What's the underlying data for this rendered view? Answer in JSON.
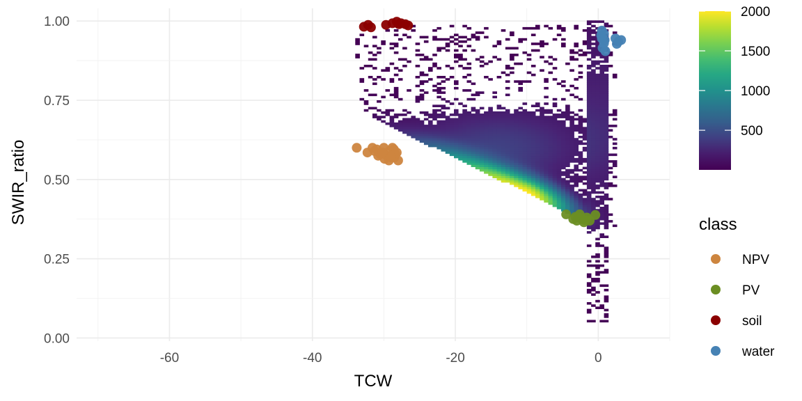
{
  "chart_data": {
    "type": "heatmap",
    "title": "",
    "xlabel": "TCW",
    "ylabel": "SWIR_ratio",
    "xlim": [
      -73,
      10
    ],
    "ylim": [
      -0.01,
      1.04
    ],
    "x_ticks": [
      -60,
      -40,
      -20,
      0
    ],
    "x_tick_labels": [
      "-60",
      "-40",
      "-20",
      "0"
    ],
    "y_ticks": [
      0.0,
      0.25,
      0.5,
      0.75,
      1.0
    ],
    "y_tick_labels": [
      "0.00",
      "0.25",
      "0.50",
      "0.75",
      "1.00"
    ],
    "grid": true,
    "background": "#ffffff",
    "density": {
      "description_of_source": "2D binned count of pixels (TCW vs SWIR_ratio)",
      "peak": {
        "x": -10,
        "y": 0.455
      },
      "colorbar": {
        "ticks": [
          500,
          1000,
          1500,
          2000
        ],
        "tick_labels": [
          "500",
          "1000",
          "1500",
          "2000"
        ],
        "range": [
          1,
          2000
        ],
        "colors": [
          "#440154",
          "#3b528b",
          "#21908c",
          "#5dc863",
          "#fde725"
        ]
      }
    },
    "legend": {
      "title": "class",
      "position": "right",
      "entries": [
        {
          "label": "NPV",
          "color": "#CD853F"
        },
        {
          "label": "PV",
          "color": "#6B8E23"
        },
        {
          "label": "soil",
          "color": "#8B0000"
        },
        {
          "label": "water",
          "color": "#4682B4"
        }
      ]
    },
    "series": [
      {
        "name": "NPV",
        "color": "#CD853F",
        "points": [
          [
            -33.8,
            0.6
          ],
          [
            -32.3,
            0.585
          ],
          [
            -31.6,
            0.6
          ],
          [
            -31.0,
            0.595
          ],
          [
            -30.5,
            0.58
          ],
          [
            -30.0,
            0.6
          ],
          [
            -29.6,
            0.575
          ],
          [
            -29.2,
            0.59
          ],
          [
            -28.8,
            0.6
          ],
          [
            -28.5,
            0.57
          ],
          [
            -28.2,
            0.585
          ],
          [
            -28.0,
            0.56
          ],
          [
            -29.9,
            0.565
          ],
          [
            -30.8,
            0.575
          ],
          [
            -28.6,
            0.595
          ],
          [
            -29.3,
            0.56
          ],
          [
            -31.3,
            0.59
          ],
          [
            -30.2,
            0.585
          ],
          [
            -28.4,
            0.58
          ],
          [
            -29.0,
            0.57
          ]
        ]
      },
      {
        "name": "PV",
        "color": "#6B8E23",
        "points": [
          [
            -4.5,
            0.39
          ],
          [
            -3.5,
            0.375
          ],
          [
            -3.0,
            0.37
          ],
          [
            -2.6,
            0.39
          ],
          [
            -2.3,
            0.375
          ],
          [
            -2.0,
            0.365
          ],
          [
            -1.6,
            0.38
          ],
          [
            -1.2,
            0.37
          ],
          [
            -0.4,
            0.388
          ],
          [
            -2.8,
            0.38
          ],
          [
            -1.9,
            0.372
          ],
          [
            -3.2,
            0.382
          ]
        ]
      },
      {
        "name": "soil",
        "color": "#8B0000",
        "points": [
          [
            -32.8,
            0.982
          ],
          [
            -32.2,
            0.988
          ],
          [
            -31.8,
            0.98
          ],
          [
            -29.7,
            0.988
          ],
          [
            -28.8,
            0.993
          ],
          [
            -28.2,
            0.998
          ],
          [
            -27.6,
            0.993
          ],
          [
            -27.0,
            0.99
          ],
          [
            -26.6,
            0.986
          ],
          [
            -27.9,
            0.99
          ]
        ]
      },
      {
        "name": "water",
        "color": "#4682B4",
        "points": [
          [
            0.5,
            0.97
          ],
          [
            0.8,
            0.96
          ],
          [
            0.5,
            0.945
          ],
          [
            0.8,
            0.93
          ],
          [
            0.6,
            0.915
          ],
          [
            1.0,
            0.905
          ],
          [
            2.4,
            0.945
          ],
          [
            2.8,
            0.935
          ],
          [
            3.2,
            0.94
          ],
          [
            2.6,
            0.928
          ],
          [
            0.4,
            0.955
          ],
          [
            0.9,
            0.94
          ]
        ]
      }
    ]
  }
}
